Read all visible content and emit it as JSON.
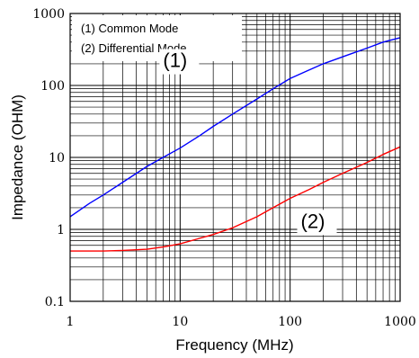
{
  "chart_data": {
    "type": "line",
    "title": "",
    "xlabel": "Frequency (MHz)",
    "ylabel": "Impedance (OHM)",
    "x_scale": "log",
    "y_scale": "log",
    "xlim": [
      1,
      1000
    ],
    "ylim": [
      0.1,
      1000
    ],
    "x_ticks": [
      1,
      10,
      100,
      1000
    ],
    "x_tick_labels": [
      "1",
      "10",
      "100",
      "1000"
    ],
    "y_ticks": [
      0.1,
      1,
      10,
      100,
      1000
    ],
    "y_tick_labels": [
      "0.1",
      "1",
      "10",
      "100",
      "1000"
    ],
    "grid": true,
    "legend": {
      "placement": "top-left",
      "entries": [
        "(1) Common Mode",
        "(2) Differential Mode"
      ]
    },
    "annotations": [
      {
        "text": "(1)",
        "x": 7,
        "y": 180
      },
      {
        "text": "(2)",
        "x": 125,
        "y": 1.05
      }
    ],
    "series": [
      {
        "label": "(1)",
        "color": "#0000ff",
        "x": [
          1,
          1.5,
          2,
          3,
          5,
          7,
          10,
          15,
          20,
          30,
          50,
          70,
          100,
          150,
          200,
          300,
          500,
          700,
          1000
        ],
        "y": [
          1.5,
          2.3,
          3.0,
          4.5,
          7.5,
          10,
          13.5,
          20,
          27,
          40,
          65,
          90,
          125,
          165,
          200,
          250,
          330,
          400,
          460
        ]
      },
      {
        "label": "(2)",
        "color": "#ff0000",
        "x": [
          1,
          1.5,
          2,
          3,
          5,
          7,
          10,
          15,
          20,
          30,
          50,
          70,
          100,
          150,
          200,
          300,
          500,
          700,
          1000
        ],
        "y": [
          0.5,
          0.5,
          0.5,
          0.51,
          0.53,
          0.57,
          0.63,
          0.75,
          0.85,
          1.05,
          1.5,
          2.0,
          2.7,
          3.6,
          4.5,
          6.0,
          8.5,
          11,
          14
        ]
      }
    ]
  }
}
